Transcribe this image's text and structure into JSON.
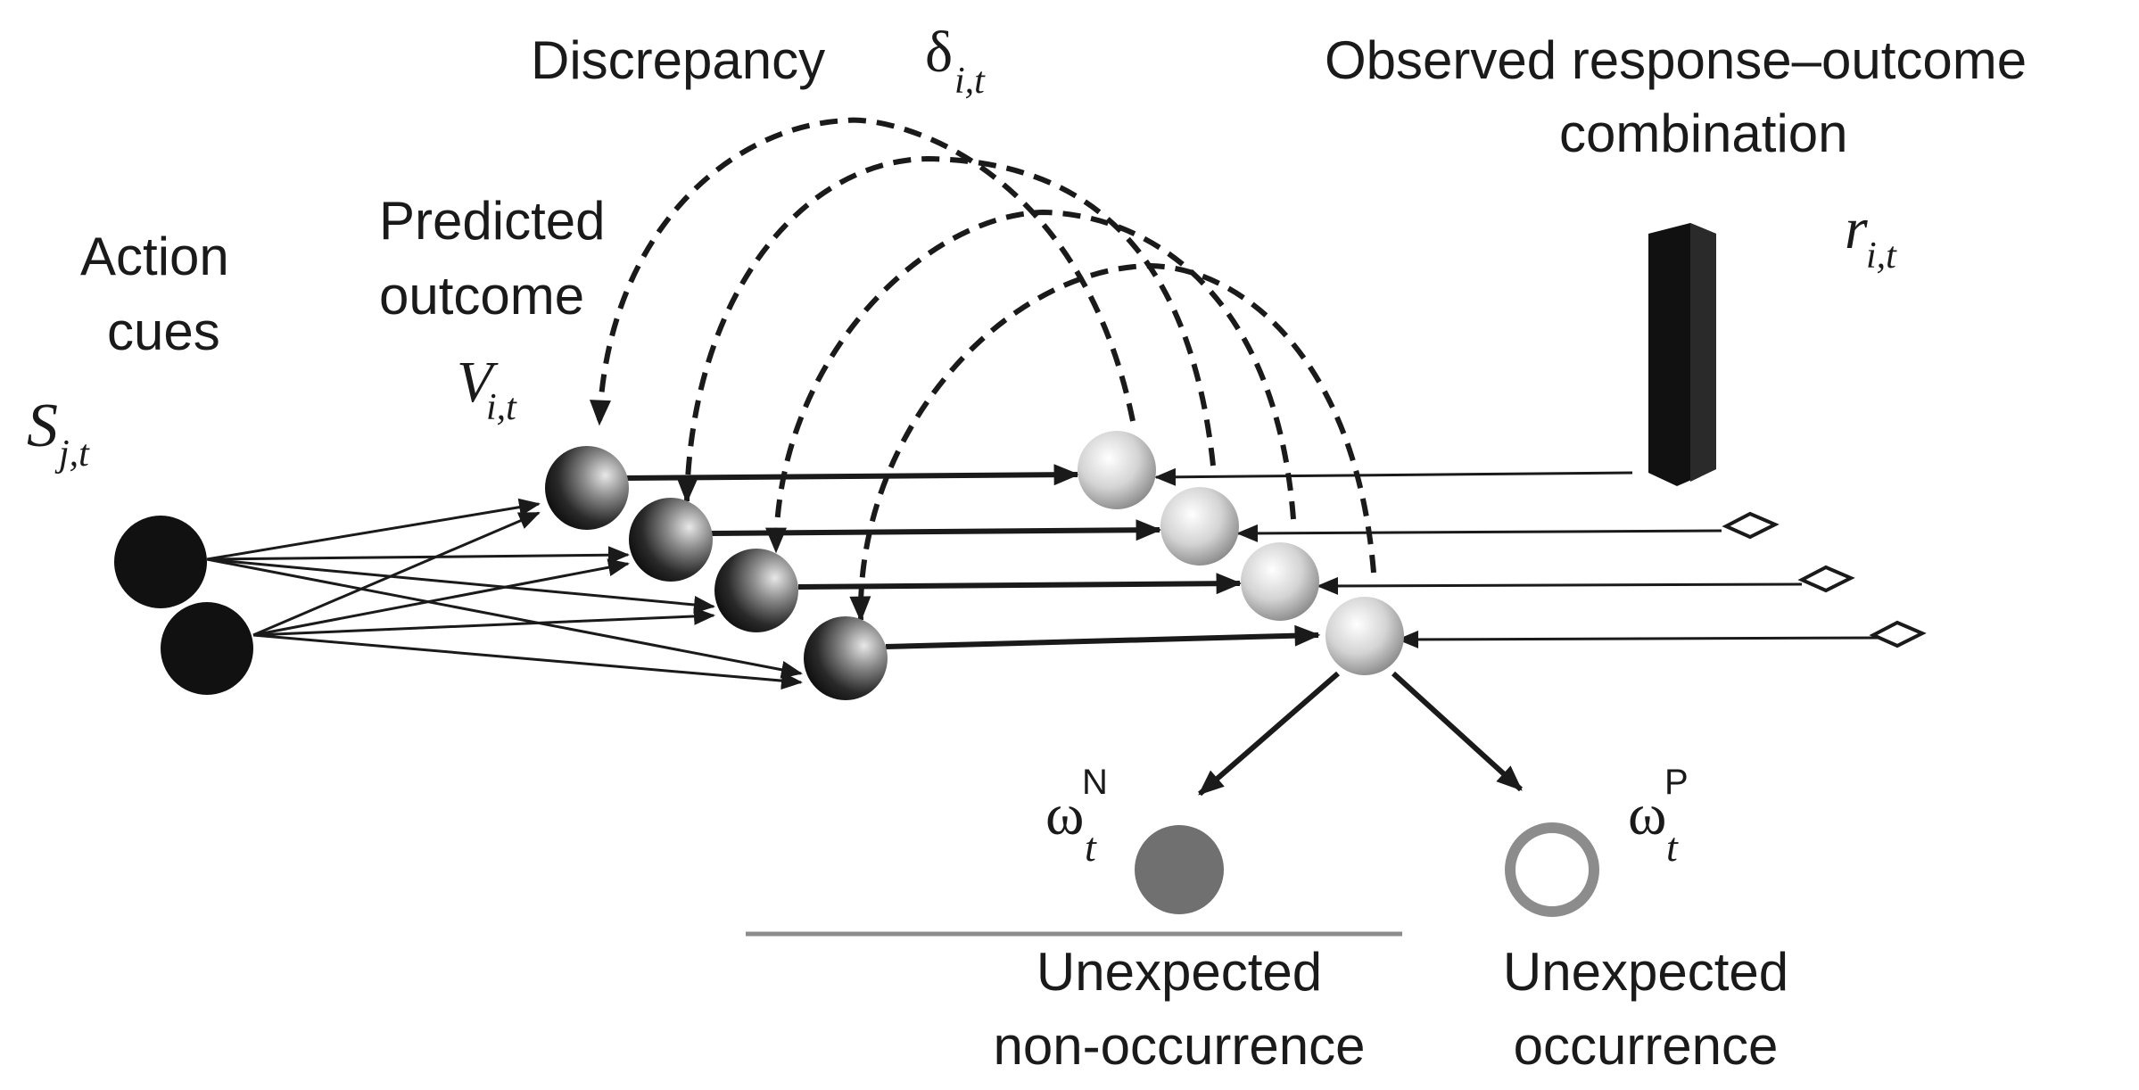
{
  "labels": {
    "action_cues_1": "Action",
    "action_cues_2": "cues",
    "predicted_outcome_1": "Predicted",
    "predicted_outcome_2": "outcome",
    "discrepancy": "Discrepancy",
    "observed_1": "Observed response–outcome",
    "observed_2": "combination",
    "unexpected_non_1": "Unexpected",
    "unexpected_non_2": "non-occurrence",
    "unexpected_occ_1": "Unexpected",
    "unexpected_occ_2": "occurrence"
  },
  "symbols": {
    "s": "S",
    "s_sub": "j,t",
    "v": "V",
    "v_sub": "i,t",
    "delta": "δ",
    "delta_sub": "i,t",
    "r": "r",
    "r_sub": "i,t",
    "omega": "ω",
    "omega_n_sub": "t",
    "omega_n_sup": "N",
    "omega_p_sub": "t",
    "omega_p_sup": "P"
  },
  "colors": {
    "ink": "#1a1a1a",
    "filled_node": "#707070",
    "open_node": "#8c8c8c",
    "baseline": "#8c8c8c"
  }
}
